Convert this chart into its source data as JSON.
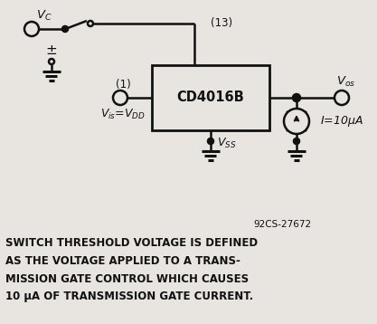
{
  "bg_color": "#e8e4df",
  "line_color": "#111111",
  "text_color": "#111111",
  "circuit_code": "92CS-27672",
  "chip_label": "CD4016B",
  "caption_lines": [
    "SWITCH THRESHOLD VOLTAGE IS DEFINED",
    "AS THE VOLTAGE APPLIED TO A TRANS-",
    "MISSION GATE CONTROL WHICH CAUSES",
    "10 μA OF TRANSMISSION GATE CURRENT."
  ],
  "figsize": [
    4.17,
    3.58
  ],
  "dpi": 100
}
